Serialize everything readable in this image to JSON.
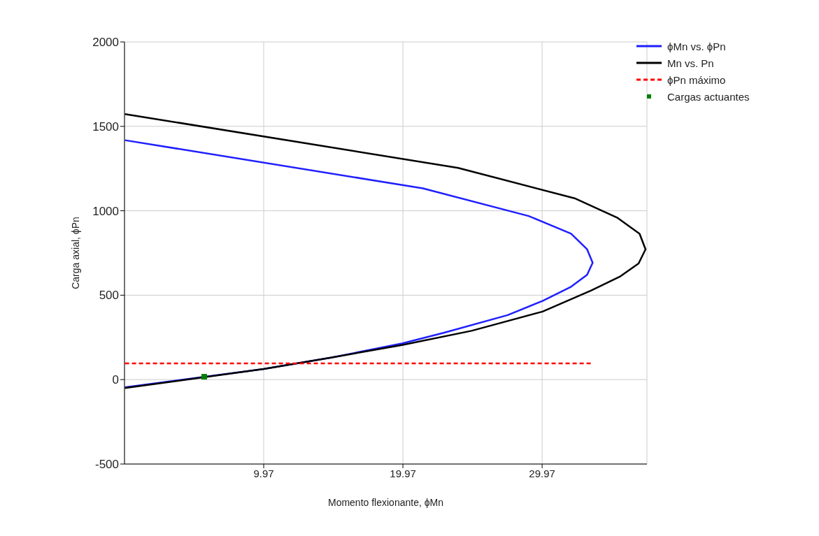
{
  "chart_data": {
    "type": "line",
    "xlabel": "Momento flexionante, ϕMn",
    "ylabel": "Carga axial, ϕPn",
    "xlim": [
      -0.03,
      37.5
    ],
    "xticks": [
      9.97,
      19.97,
      29.97
    ],
    "ylim": [
      -500,
      2000
    ],
    "yticks": [
      -500,
      0,
      500,
      1000,
      1500,
      2000
    ],
    "grid": true,
    "legend": "top right",
    "marker": "none",
    "series": [
      {
        "name": "ϕMn vs. ϕPn",
        "color": "#1f1fff",
        "x": [
          0,
          9.97,
          14.8,
          19.9,
          22.9,
          27.5,
          30.0,
          32.05,
          33.2,
          33.6,
          33.2,
          32.05,
          29.0,
          21.4,
          0
        ],
        "values": [
          -46,
          63,
          130,
          214,
          277,
          382,
          466,
          550,
          621,
          692,
          772,
          864,
          969,
          1133,
          1418
        ]
      },
      {
        "name": "Mn vs. Pn",
        "color": "#000000",
        "x": [
          0,
          5.6,
          9.97,
          14.8,
          19.9,
          24.9,
          30.0,
          33.5,
          35.6,
          36.9,
          37.4,
          36.97,
          35.35,
          32.3,
          23.93,
          0
        ],
        "values": [
          -50,
          13,
          63,
          130,
          205,
          289,
          403,
          528,
          612,
          688,
          772,
          864,
          960,
          1074,
          1254,
          1573
        ]
      },
      {
        "name": "ϕPn máximo",
        "type": "line",
        "line_style": "dashed",
        "color": "#ff0000",
        "x": [
          0,
          33.6
        ],
        "values": [
          96,
          96
        ]
      },
      {
        "name": "Cargas actuantes",
        "type": "scatter",
        "marker": "square",
        "color": "#008000",
        "x": [
          5.7
        ],
        "values": [
          17
        ]
      }
    ]
  }
}
